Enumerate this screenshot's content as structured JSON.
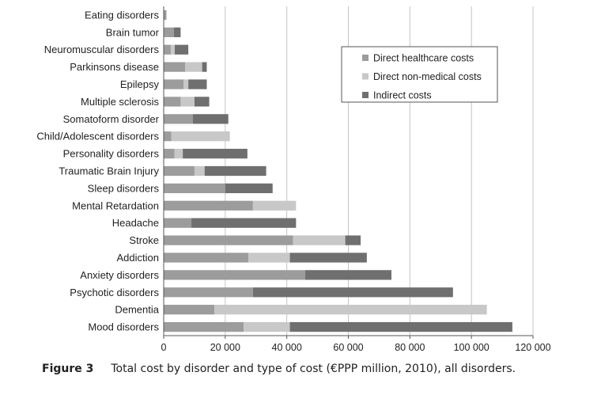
{
  "chart_data": {
    "type": "bar",
    "orientation": "horizontal",
    "stacked": true,
    "categories": [
      "Eating disorders",
      "Brain tumor",
      "Neuromuscular disorders",
      "Parkinsons disease",
      "Epilepsy",
      "Multiple sclerosis",
      "Somatoform disorder",
      "Child/Adolescent disorders",
      "Personality disorders",
      "Traumatic Brain Injury",
      "Sleep disorders",
      "Mental Retardation",
      "Headache",
      "Stroke",
      "Addiction",
      "Anxiety disorders",
      "Psychotic disorders",
      "Dementia",
      "Mood disorders"
    ],
    "series": [
      {
        "name": "Direct healthcare costs",
        "color": "#9c9c9c",
        "values": [
          900,
          3300,
          2300,
          7000,
          6500,
          5500,
          9500,
          2500,
          3500,
          10000,
          20000,
          29000,
          9000,
          42000,
          27500,
          46000,
          29000,
          16500,
          26000
        ]
      },
      {
        "name": "Direct non-medical costs",
        "color": "#c8c8c8",
        "values": [
          0,
          0,
          1300,
          5500,
          1500,
          4500,
          0,
          19000,
          2700,
          3300,
          0,
          14000,
          0,
          17000,
          13500,
          0,
          0,
          88500,
          15000
        ]
      },
      {
        "name": "Indirect costs",
        "color": "#6f6f6f",
        "values": [
          0,
          2200,
          4400,
          1500,
          6000,
          4800,
          11500,
          0,
          21000,
          20000,
          15400,
          0,
          34000,
          5000,
          25000,
          28000,
          65000,
          0,
          72300
        ]
      }
    ],
    "xlim": [
      0,
      120000
    ],
    "xticks": [
      "0",
      "20 000",
      "40 000",
      "60 000",
      "80 000",
      "100 000",
      "120 000"
    ],
    "xtick_values": [
      0,
      20000,
      40000,
      60000,
      80000,
      100000,
      120000
    ],
    "grid": "vertical",
    "legend_position": "top-right"
  },
  "caption": {
    "figure_label": "Figure 3",
    "text": "Total cost by disorder and type of cost (€PPP million, 2010), all disorders."
  }
}
